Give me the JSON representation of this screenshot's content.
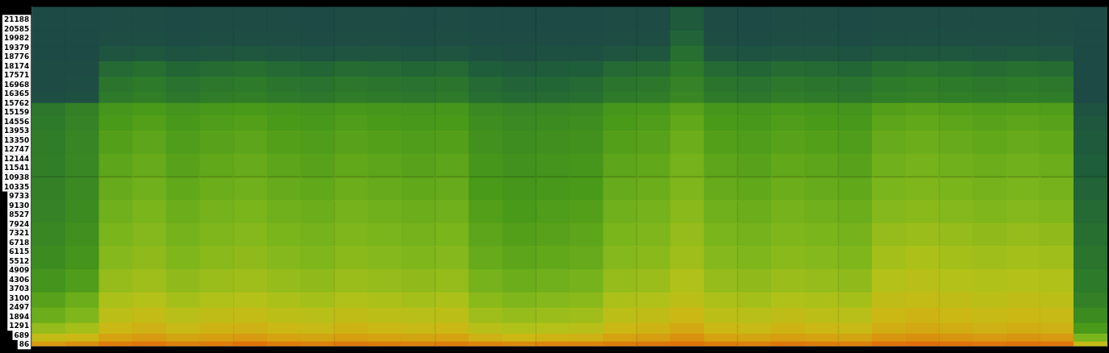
{
  "chart_data": {
    "type": "heatmap",
    "ylim": [
      0,
      22050
    ],
    "yticks": [
      86,
      689,
      1291,
      1894,
      2497,
      3100,
      3703,
      4306,
      4909,
      5512,
      6115,
      6718,
      7321,
      7924,
      8527,
      9130,
      9733,
      10335,
      10938,
      11541,
      12144,
      12747,
      13350,
      13953,
      14556,
      15159,
      15762,
      16365,
      16968,
      17571,
      18174,
      18776,
      19379,
      19982,
      20585,
      21188
    ],
    "y_bins": [
      0,
      300,
      800,
      1500,
      2500,
      3500,
      5000,
      6500,
      8000,
      9500,
      11000,
      12500,
      14000,
      15000,
      15800,
      16500,
      17500,
      18500,
      19500,
      20500,
      22050
    ],
    "clim": [
      10,
      90
    ],
    "tick_labels": "y",
    "grid": false,
    "cells": [
      [
        80,
        82,
        86,
        87,
        85,
        86,
        88,
        86,
        85,
        87,
        86,
        85,
        86,
        84,
        83,
        84,
        84,
        86,
        87,
        88,
        86,
        85,
        87,
        86,
        85,
        88,
        89,
        88,
        87,
        88,
        87,
        70
      ],
      [
        70,
        72,
        78,
        80,
        77,
        79,
        80,
        78,
        77,
        79,
        78,
        77,
        78,
        74,
        72,
        73,
        74,
        78,
        79,
        82,
        78,
        77,
        79,
        78,
        77,
        81,
        82,
        81,
        80,
        81,
        80,
        55
      ],
      [
        60,
        63,
        72,
        74,
        71,
        73,
        74,
        72,
        71,
        73,
        72,
        71,
        72,
        67,
        65,
        66,
        67,
        72,
        73,
        76,
        72,
        71,
        73,
        72,
        71,
        75,
        76,
        75,
        74,
        75,
        74,
        45
      ],
      [
        52,
        56,
        68,
        70,
        67,
        69,
        70,
        68,
        67,
        69,
        68,
        67,
        68,
        62,
        60,
        61,
        62,
        68,
        69,
        72,
        68,
        67,
        69,
        68,
        67,
        72,
        73,
        72,
        71,
        72,
        71,
        38
      ],
      [
        48,
        52,
        64,
        66,
        63,
        65,
        66,
        64,
        63,
        65,
        64,
        63,
        64,
        58,
        56,
        57,
        58,
        64,
        65,
        68,
        64,
        63,
        65,
        64,
        63,
        69,
        70,
        69,
        68,
        69,
        68,
        33
      ],
      [
        42,
        46,
        60,
        62,
        59,
        61,
        62,
        60,
        59,
        61,
        60,
        59,
        60,
        54,
        52,
        53,
        54,
        60,
        61,
        65,
        60,
        59,
        61,
        60,
        59,
        66,
        67,
        66,
        65,
        66,
        65,
        30
      ],
      [
        38,
        42,
        57,
        59,
        56,
        58,
        59,
        57,
        56,
        58,
        57,
        56,
        57,
        51,
        49,
        50,
        51,
        57,
        58,
        62,
        57,
        56,
        58,
        57,
        56,
        63,
        64,
        63,
        62,
        63,
        62,
        28
      ],
      [
        36,
        40,
        55,
        57,
        54,
        56,
        57,
        55,
        54,
        56,
        55,
        54,
        55,
        49,
        47,
        48,
        49,
        55,
        56,
        60,
        55,
        54,
        56,
        55,
        54,
        60,
        61,
        60,
        59,
        60,
        59,
        26
      ],
      [
        34,
        38,
        53,
        55,
        52,
        54,
        55,
        53,
        52,
        54,
        53,
        52,
        53,
        47,
        45,
        46,
        47,
        53,
        54,
        58,
        53,
        52,
        54,
        53,
        52,
        57,
        58,
        57,
        56,
        57,
        56,
        24
      ],
      [
        33,
        37,
        51,
        53,
        50,
        52,
        53,
        51,
        50,
        52,
        51,
        50,
        51,
        45,
        43,
        44,
        45,
        51,
        52,
        56,
        51,
        50,
        52,
        51,
        50,
        55,
        56,
        55,
        54,
        55,
        54,
        22
      ],
      [
        32,
        36,
        49,
        51,
        48,
        50,
        51,
        49,
        48,
        50,
        49,
        48,
        49,
        43,
        41,
        42,
        43,
        49,
        50,
        54,
        49,
        48,
        50,
        49,
        48,
        53,
        54,
        53,
        52,
        53,
        52,
        20
      ],
      [
        31,
        35,
        47,
        49,
        46,
        48,
        49,
        47,
        46,
        48,
        47,
        46,
        47,
        41,
        39,
        40,
        41,
        47,
        48,
        52,
        47,
        46,
        48,
        47,
        46,
        51,
        52,
        51,
        50,
        51,
        50,
        18
      ],
      [
        30,
        34,
        45,
        47,
        44,
        46,
        47,
        45,
        44,
        46,
        45,
        44,
        45,
        39,
        37,
        38,
        39,
        45,
        46,
        50,
        45,
        44,
        46,
        45,
        44,
        49,
        50,
        49,
        48,
        49,
        48,
        16
      ],
      [
        29,
        33,
        43,
        45,
        42,
        44,
        45,
        43,
        42,
        44,
        43,
        42,
        43,
        37,
        35,
        36,
        37,
        43,
        44,
        48,
        43,
        42,
        44,
        43,
        42,
        47,
        48,
        47,
        46,
        47,
        46,
        14
      ],
      [
        12,
        13,
        30,
        32,
        29,
        31,
        32,
        30,
        29,
        31,
        30,
        29,
        30,
        26,
        24,
        25,
        26,
        30,
        31,
        36,
        30,
        29,
        31,
        30,
        29,
        32,
        33,
        32,
        31,
        32,
        31,
        10
      ],
      [
        11,
        12,
        28,
        30,
        27,
        29,
        30,
        28,
        27,
        29,
        28,
        27,
        28,
        24,
        22,
        23,
        24,
        28,
        29,
        34,
        28,
        27,
        29,
        28,
        27,
        30,
        31,
        30,
        29,
        30,
        29,
        10
      ],
      [
        11,
        11,
        24,
        26,
        23,
        25,
        26,
        24,
        23,
        25,
        24,
        23,
        24,
        20,
        18,
        19,
        20,
        24,
        25,
        30,
        24,
        23,
        25,
        24,
        23,
        26,
        27,
        26,
        25,
        26,
        25,
        10
      ],
      [
        10,
        10,
        15,
        16,
        14,
        15,
        16,
        15,
        14,
        15,
        15,
        14,
        15,
        13,
        12,
        13,
        13,
        15,
        16,
        26,
        15,
        14,
        15,
        15,
        14,
        16,
        16,
        16,
        15,
        16,
        15,
        10
      ],
      [
        10,
        10,
        12,
        12,
        11,
        12,
        12,
        12,
        11,
        12,
        12,
        11,
        12,
        11,
        11,
        11,
        11,
        12,
        12,
        22,
        12,
        11,
        12,
        12,
        11,
        12,
        12,
        12,
        12,
        12,
        12,
        10
      ],
      [
        10,
        10,
        11,
        11,
        10,
        11,
        11,
        11,
        10,
        11,
        11,
        10,
        11,
        10,
        10,
        10,
        10,
        11,
        11,
        18,
        11,
        10,
        11,
        11,
        10,
        11,
        11,
        11,
        11,
        11,
        11,
        10
      ]
    ]
  }
}
